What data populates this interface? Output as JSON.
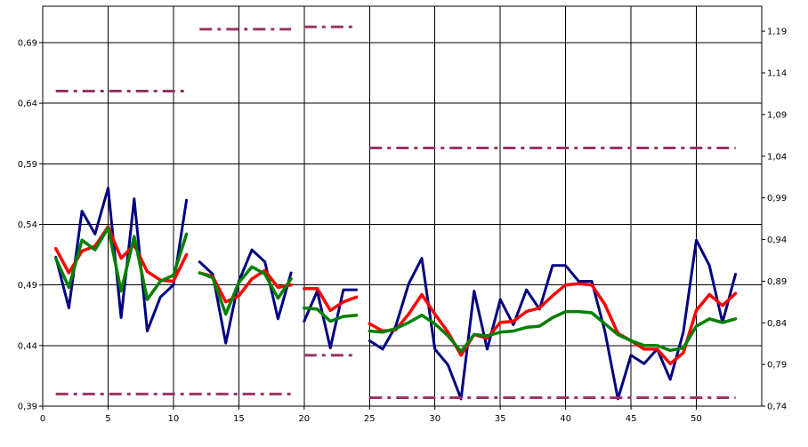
{
  "chart_data": {
    "type": "line",
    "grid": true,
    "x_axis": {
      "range": [
        0,
        55
      ],
      "ticks": [
        0,
        5,
        10,
        15,
        20,
        25,
        30,
        35,
        40,
        45,
        50
      ],
      "tick_labels": [
        "0",
        "5",
        "10",
        "15",
        "20",
        "25",
        "30",
        "35",
        "40",
        "45",
        "50"
      ]
    },
    "y_axis_left": {
      "range": [
        0.39,
        0.72
      ],
      "ticks": [
        0.39,
        0.44,
        0.49,
        0.54,
        0.59,
        0.64,
        0.69
      ],
      "tick_labels": [
        "0,39",
        "0,44",
        "0,49",
        "0,54",
        "0,59",
        "0,64",
        "0,69"
      ]
    },
    "y_axis_right": {
      "range": [
        0.74,
        1.22
      ],
      "ticks": [
        0.74,
        0.79,
        0.84,
        0.89,
        0.94,
        0.99,
        1.04,
        1.09,
        1.14,
        1.19
      ],
      "tick_labels": [
        "0,74",
        "0,79",
        "0,84",
        "0,89",
        "0,94",
        "0,99",
        "1,04",
        "1,09",
        "1,14",
        "1,19"
      ]
    },
    "vertical_dividers": [
      20,
      25
    ],
    "series": [
      {
        "color": "#000080",
        "width": 3,
        "axis": "left",
        "segments": [
          [
            [
              1,
              0.513
            ],
            [
              2,
              0.471
            ],
            [
              3,
              0.551
            ],
            [
              4,
              0.532
            ],
            [
              5,
              0.57
            ],
            [
              6,
              0.463
            ],
            [
              7,
              0.561
            ],
            [
              8,
              0.452
            ],
            [
              9,
              0.48
            ],
            [
              10,
              0.49
            ],
            [
              11,
              0.56
            ]
          ],
          [
            [
              12,
              0.509
            ],
            [
              13,
              0.499
            ],
            [
              14,
              0.442
            ],
            [
              15,
              0.493
            ],
            [
              16,
              0.519
            ],
            [
              17,
              0.509
            ],
            [
              18,
              0.462
            ],
            [
              19,
              0.5
            ]
          ],
          [
            [
              20,
              0.46
            ],
            [
              21,
              0.485
            ],
            [
              22,
              0.438
            ],
            [
              23,
              0.486
            ],
            [
              24,
              0.486
            ]
          ],
          [
            [
              25,
              0.444
            ],
            [
              26,
              0.437
            ],
            [
              27,
              0.456
            ],
            [
              28,
              0.491
            ],
            [
              29,
              0.512
            ],
            [
              30,
              0.437
            ],
            [
              31,
              0.424
            ],
            [
              32,
              0.396
            ],
            [
              33,
              0.485
            ],
            [
              34,
              0.437
            ],
            [
              35,
              0.478
            ],
            [
              36,
              0.457
            ],
            [
              37,
              0.486
            ],
            [
              38,
              0.47
            ],
            [
              39,
              0.506
            ],
            [
              40,
              0.506
            ],
            [
              41,
              0.493
            ],
            [
              42,
              0.493
            ],
            [
              43,
              0.452
            ],
            [
              44,
              0.396
            ],
            [
              45,
              0.432
            ],
            [
              46,
              0.425
            ],
            [
              47,
              0.437
            ],
            [
              48,
              0.412
            ],
            [
              49,
              0.451
            ],
            [
              50,
              0.527
            ],
            [
              51,
              0.506
            ],
            [
              52,
              0.459
            ],
            [
              53,
              0.499
            ]
          ]
        ]
      },
      {
        "color": "#ff0000",
        "width": 3.5,
        "axis": "left",
        "segments": [
          [
            [
              1,
              0.52
            ],
            [
              2,
              0.5
            ],
            [
              3,
              0.518
            ],
            [
              4,
              0.522
            ],
            [
              5,
              0.538
            ],
            [
              6,
              0.512
            ],
            [
              7,
              0.523
            ],
            [
              8,
              0.501
            ],
            [
              9,
              0.494
            ],
            [
              10,
              0.493
            ],
            [
              11,
              0.515
            ]
          ],
          [
            [
              12,
              0.5
            ],
            [
              13,
              0.497
            ],
            [
              14,
              0.476
            ],
            [
              15,
              0.481
            ],
            [
              16,
              0.495
            ],
            [
              17,
              0.502
            ],
            [
              18,
              0.488
            ],
            [
              19,
              0.49
            ]
          ],
          [
            [
              20,
              0.487
            ],
            [
              21,
              0.487
            ],
            [
              22,
              0.469
            ],
            [
              23,
              0.476
            ],
            [
              24,
              0.48
            ]
          ],
          [
            [
              25,
              0.458
            ],
            [
              26,
              0.452
            ],
            [
              27,
              0.453
            ],
            [
              28,
              0.466
            ],
            [
              29,
              0.482
            ],
            [
              30,
              0.466
            ],
            [
              31,
              0.451
            ],
            [
              32,
              0.432
            ],
            [
              33,
              0.449
            ],
            [
              34,
              0.446
            ],
            [
              35,
              0.459
            ],
            [
              36,
              0.46
            ],
            [
              37,
              0.468
            ],
            [
              38,
              0.471
            ],
            [
              39,
              0.481
            ],
            [
              40,
              0.49
            ],
            [
              41,
              0.491
            ],
            [
              42,
              0.49
            ],
            [
              43,
              0.474
            ],
            [
              44,
              0.45
            ],
            [
              45,
              0.444
            ],
            [
              46,
              0.437
            ],
            [
              47,
              0.437
            ],
            [
              48,
              0.425
            ],
            [
              49,
              0.434
            ],
            [
              50,
              0.469
            ],
            [
              51,
              0.482
            ],
            [
              52,
              0.473
            ],
            [
              53,
              0.483
            ]
          ]
        ]
      },
      {
        "color": "#008000",
        "width": 3.5,
        "axis": "left",
        "segments": [
          [
            [
              1,
              0.512
            ],
            [
              2,
              0.488
            ],
            [
              3,
              0.527
            ],
            [
              4,
              0.519
            ],
            [
              5,
              0.537
            ],
            [
              6,
              0.485
            ],
            [
              7,
              0.53
            ],
            [
              8,
              0.478
            ],
            [
              9,
              0.493
            ],
            [
              10,
              0.498
            ],
            [
              11,
              0.532
            ]
          ],
          [
            [
              12,
              0.5
            ],
            [
              13,
              0.496
            ],
            [
              14,
              0.466
            ],
            [
              15,
              0.492
            ],
            [
              16,
              0.505
            ],
            [
              17,
              0.499
            ],
            [
              18,
              0.479
            ],
            [
              19,
              0.495
            ]
          ],
          [
            [
              20,
              0.471
            ],
            [
              21,
              0.47
            ],
            [
              22,
              0.46
            ],
            [
              23,
              0.464
            ],
            [
              24,
              0.465
            ]
          ],
          [
            [
              25,
              0.452
            ],
            [
              26,
              0.451
            ],
            [
              27,
              0.454
            ],
            [
              28,
              0.459
            ],
            [
              29,
              0.465
            ],
            [
              30,
              0.458
            ],
            [
              31,
              0.448
            ],
            [
              32,
              0.435
            ],
            [
              33,
              0.449
            ],
            [
              34,
              0.448
            ],
            [
              35,
              0.451
            ],
            [
              36,
              0.452
            ],
            [
              37,
              0.455
            ],
            [
              38,
              0.456
            ],
            [
              39,
              0.463
            ],
            [
              40,
              0.468
            ],
            [
              41,
              0.468
            ],
            [
              42,
              0.467
            ],
            [
              43,
              0.458
            ],
            [
              44,
              0.449
            ],
            [
              45,
              0.444
            ],
            [
              46,
              0.44
            ],
            [
              47,
              0.44
            ],
            [
              48,
              0.436
            ],
            [
              49,
              0.438
            ],
            [
              50,
              0.456
            ],
            [
              51,
              0.462
            ],
            [
              52,
              0.459
            ],
            [
              53,
              0.462
            ]
          ]
        ]
      },
      {
        "color": "#993366",
        "width": 3,
        "dashed": true,
        "axis": "left",
        "segments": [
          [
            [
              1,
              0.65
            ],
            [
              11,
              0.65
            ]
          ],
          [
            [
              12,
              0.701
            ],
            [
              19,
              0.701
            ]
          ],
          [
            [
              20,
              0.703
            ],
            [
              24,
              0.703
            ]
          ],
          [
            [
              25,
              0.603
            ],
            [
              53,
              0.603
            ]
          ],
          [
            [
              1,
              0.4
            ],
            [
              19,
              0.4
            ]
          ],
          [
            [
              20,
              0.432
            ],
            [
              24,
              0.432
            ]
          ],
          [
            [
              25,
              0.397
            ],
            [
              53,
              0.397
            ]
          ]
        ]
      }
    ]
  }
}
